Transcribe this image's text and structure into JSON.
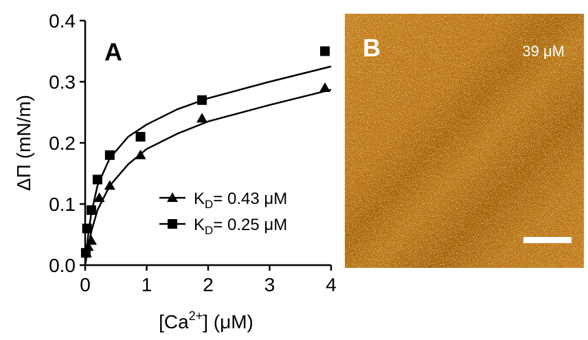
{
  "chart_data": {
    "type": "scatter",
    "panel_label": "A",
    "ylabel": "ΔΠ  (mN/m)",
    "xlabel": [
      "[Ca",
      "2+",
      "] (μM)"
    ],
    "xlim": [
      0,
      4
    ],
    "xticks": [
      0,
      1,
      2,
      3,
      4
    ],
    "ylim": [
      0,
      0.4
    ],
    "yticks": [
      {
        "value": 0,
        "label": "0.0"
      },
      0.1,
      0.2,
      0.3,
      0.4
    ],
    "series": [
      {
        "name": [
          "K",
          "D",
          "= 0.43 μM"
        ],
        "marker": "triangle",
        "color": "#000000",
        "x": [
          0.02,
          0.05,
          0.1,
          0.23,
          0.4,
          0.9,
          1.9,
          3.9
        ],
        "values": [
          0.02,
          0.03,
          0.04,
          0.11,
          0.13,
          0.18,
          0.24,
          0.29
        ],
        "fit": {
          "x": [
            0,
            0.05,
            0.1,
            0.2,
            0.4,
            0.7,
            1,
            1.5,
            2,
            3,
            4
          ],
          "values": [
            0,
            0.03,
            0.055,
            0.09,
            0.13,
            0.165,
            0.19,
            0.215,
            0.235,
            0.262,
            0.287
          ]
        }
      },
      {
        "name": [
          "K",
          "D",
          "= 0.25 μM"
        ],
        "marker": "square",
        "color": "#000000",
        "x": [
          0.01,
          0.03,
          0.1,
          0.2,
          0.4,
          0.9,
          1.9,
          3.9
        ],
        "values": [
          0.02,
          0.06,
          0.09,
          0.14,
          0.18,
          0.21,
          0.27,
          0.35
        ],
        "fit": {
          "x": [
            0,
            0.05,
            0.1,
            0.2,
            0.4,
            0.7,
            1,
            1.5,
            2,
            3,
            4
          ],
          "values": [
            0,
            0.05,
            0.085,
            0.13,
            0.175,
            0.21,
            0.23,
            0.255,
            0.273,
            0.3,
            0.325
          ]
        }
      }
    ]
  },
  "image_panel": {
    "label": "B",
    "annotation": "39 μM"
  }
}
